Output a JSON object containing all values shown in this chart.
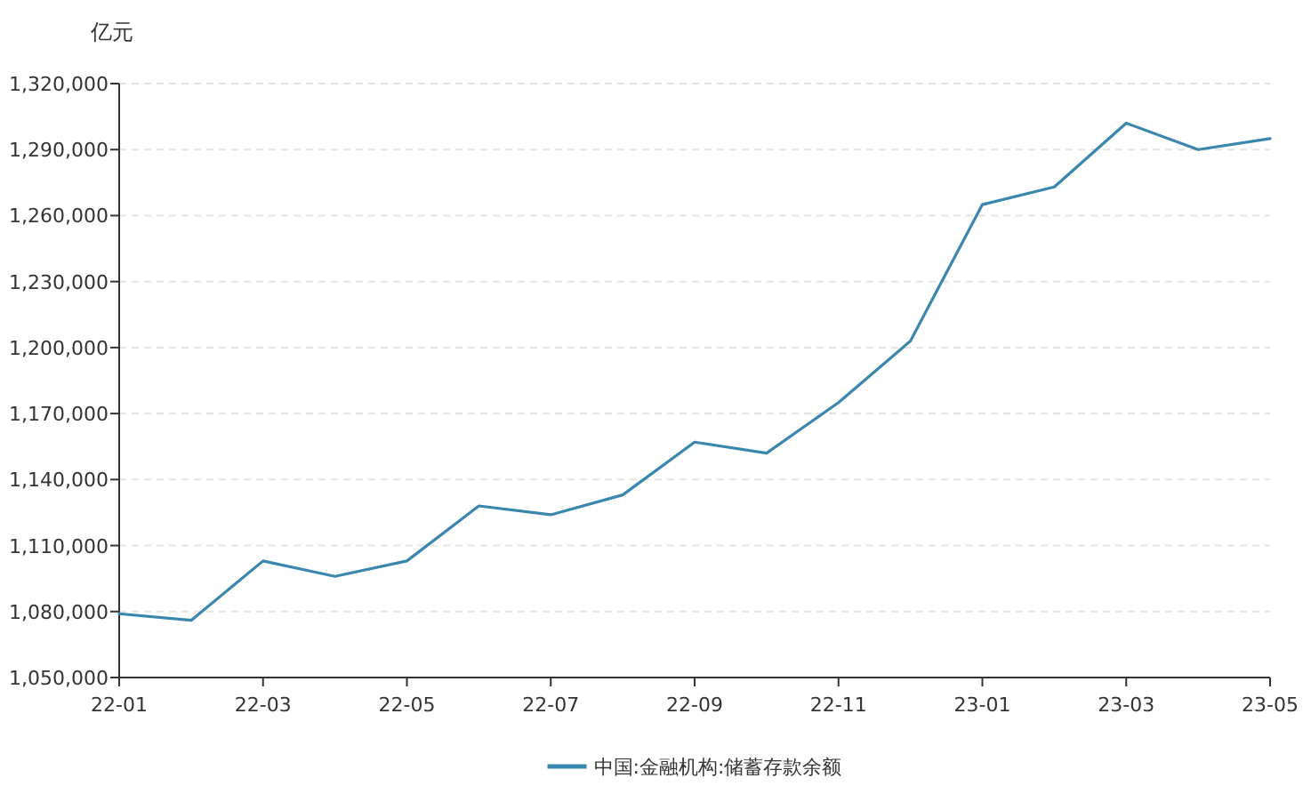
{
  "chart_data": {
    "type": "line",
    "ylabel": "亿元",
    "categories": [
      "22-01",
      null,
      "22-03",
      null,
      "22-05",
      null,
      "22-07",
      null,
      "22-09",
      null,
      "22-11",
      null,
      "23-01",
      null,
      "23-03",
      null,
      "23-05"
    ],
    "series": [
      {
        "name": "中国:金融机构:储蓄存款余额",
        "color": "#3a87ad",
        "values": [
          1079000,
          1076000,
          1103000,
          1096000,
          1103000,
          1128000,
          1124000,
          1133000,
          1157000,
          1152000,
          1175000,
          1203000,
          1265000,
          1273000,
          1302000,
          1290000,
          1295000
        ]
      }
    ],
    "ylim": [
      1050000,
      1320000
    ],
    "yticks": [
      {
        "value": 1050000,
        "label": "1,050,000"
      },
      {
        "value": 1080000,
        "label": "1,080,000"
      },
      {
        "value": 1110000,
        "label": "1,110,000"
      },
      {
        "value": 1140000,
        "label": "1,140,000"
      },
      {
        "value": 1170000,
        "label": "1,170,000"
      },
      {
        "value": 1200000,
        "label": "1,200,000"
      },
      {
        "value": 1230000,
        "label": "1,230,000"
      },
      {
        "value": 1260000,
        "label": "1,260,000"
      },
      {
        "value": 1290000,
        "label": "1,290,000"
      },
      {
        "value": 1320000,
        "label": "1,320,000"
      }
    ],
    "grid": "y",
    "legend": "bottom"
  }
}
